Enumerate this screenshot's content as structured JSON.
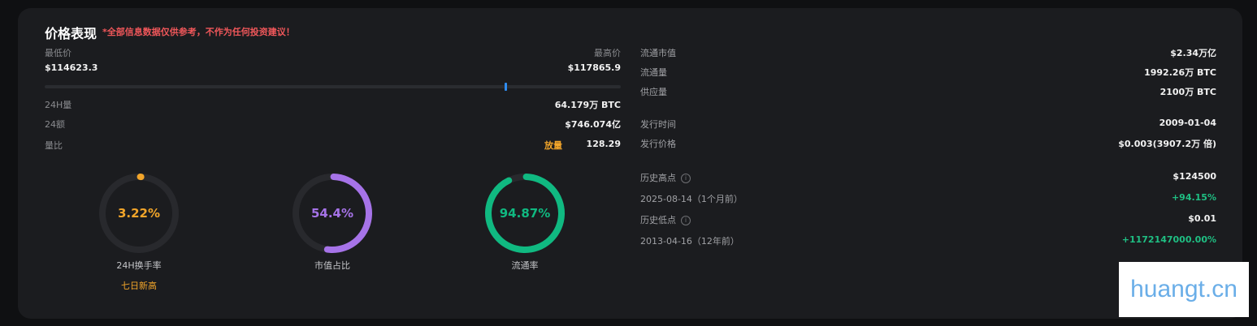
{
  "header": {
    "title": "价格表现",
    "disclaimer": "*全部信息数据仅供参考，不作为任何投资建议！"
  },
  "price_range": {
    "low_label": "最低价",
    "low_value": "$114623.3",
    "high_label": "最高价",
    "high_value": "$117865.9",
    "current_position_fraction": 0.8
  },
  "stats_left": [
    {
      "label": "24H量",
      "value": "64.179万 BTC"
    },
    {
      "label": "24额",
      "value": "$746.074亿"
    },
    {
      "label": "量比",
      "tag": "放量",
      "value": "128.29"
    }
  ],
  "gauges": [
    {
      "value_text": "3.22%",
      "percent": 3.22,
      "label": "24H换手率",
      "sub_label": "七日新高",
      "color": "#f2a52a"
    },
    {
      "value_text": "54.4%",
      "percent": 54.4,
      "label": "市值占比",
      "color": "#a673e8"
    },
    {
      "value_text": "94.87%",
      "percent": 94.87,
      "label": "流通率",
      "color": "#10b981"
    }
  ],
  "stats_right": [
    {
      "label": "流通市值",
      "value": "$2.34万亿"
    },
    {
      "label": "流通量",
      "value": "1992.26万 BTC"
    },
    {
      "label": "供应量",
      "value": "2100万 BTC"
    },
    {
      "label": "发行时间",
      "value": "2009-01-04"
    },
    {
      "label": "发行价格",
      "value": "$0.003(3907.2万 倍)"
    }
  ],
  "history": {
    "ath_label": "历史高点",
    "ath_value": "$124500",
    "ath_date": "2025-08-14（1个月前）",
    "ath_change": "+94.15%",
    "atl_label": "历史低点",
    "atl_value": "$0.01",
    "atl_date": "2013-04-16（12年前）",
    "atl_change": "+1172147000.00%",
    "info_icon": "i"
  },
  "watermark": "huangt.cn",
  "colors": {
    "background": "#1b1c1f",
    "positive": "#1fbf83",
    "warning": "#f0575a",
    "accent_blue": "#2f8cf0",
    "tag": "#f2a52a"
  }
}
